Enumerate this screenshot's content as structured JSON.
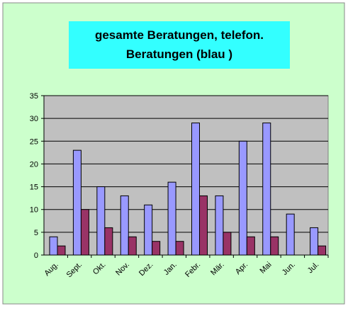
{
  "chart_data": {
    "type": "bar",
    "title": "gesamte Beratungen, telefon.",
    "title_line2": "Beratungen (blau )",
    "categories": [
      "Aug.",
      "Sept.",
      "Okt.",
      "Nov.",
      "Dez.",
      "Jan.",
      "Febr.",
      "Mär.",
      "Apr.",
      "Mai",
      "Jun.",
      "Jul."
    ],
    "series": [
      {
        "color": "#9999ff",
        "values": [
          4,
          23,
          15,
          13,
          11,
          16,
          29,
          13,
          25,
          29,
          9,
          6
        ]
      },
      {
        "color": "#993366",
        "values": [
          2,
          10,
          6,
          4,
          3,
          3,
          13,
          5,
          4,
          4,
          0,
          2
        ]
      }
    ],
    "ylim": [
      0,
      35
    ],
    "yticks": [
      0,
      5,
      10,
      15,
      20,
      25,
      30,
      35
    ],
    "grid": true
  }
}
